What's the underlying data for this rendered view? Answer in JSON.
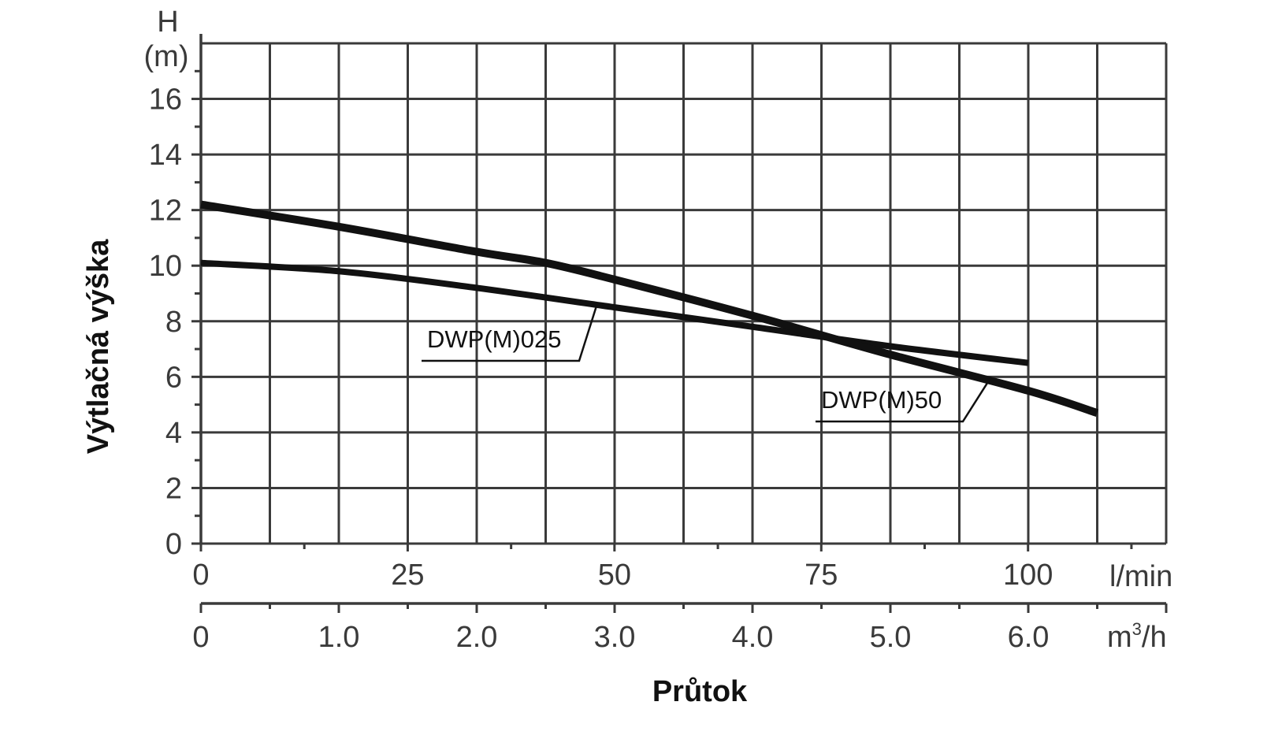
{
  "chart_data": {
    "type": "line",
    "xlabel": "Průtok",
    "ylabel": "Výtlačná výška",
    "y_unit_top": "H",
    "y_unit_bottom": "(m)",
    "x_unit_primary": "l/min",
    "x_unit_secondary_base": "m",
    "x_unit_secondary_exp": "3",
    "x_unit_secondary_tail": "/h",
    "ylim": [
      0,
      18
    ],
    "y_ticks": [
      "0",
      "2",
      "4",
      "6",
      "8",
      "10",
      "12",
      "14",
      "16"
    ],
    "xlim_lmin": [
      0,
      116.7
    ],
    "x_ticks_lmin": [
      "0",
      "25",
      "50",
      "75",
      "100"
    ],
    "xlim_m3h": [
      0,
      7
    ],
    "x_ticks_m3h": [
      "0",
      "1.0",
      "2.0",
      "3.0",
      "4.0",
      "5.0",
      "6.0"
    ],
    "grid": true,
    "line_color": "#111111",
    "grid_color": "#3a3a3a",
    "series": [
      {
        "name": "DWP(M)025",
        "x_m3h": [
          0,
          1,
          2,
          3,
          4,
          5,
          6
        ],
        "y": [
          10.1,
          9.8,
          9.2,
          8.5,
          7.8,
          7.1,
          6.5
        ]
      },
      {
        "name": "DWP(M)50",
        "x_m3h": [
          0,
          1,
          2,
          2.5,
          3,
          4,
          5,
          6,
          6.5
        ],
        "y": [
          12.2,
          11.4,
          10.5,
          10.1,
          9.5,
          8.2,
          6.8,
          5.5,
          4.7
        ]
      }
    ]
  }
}
